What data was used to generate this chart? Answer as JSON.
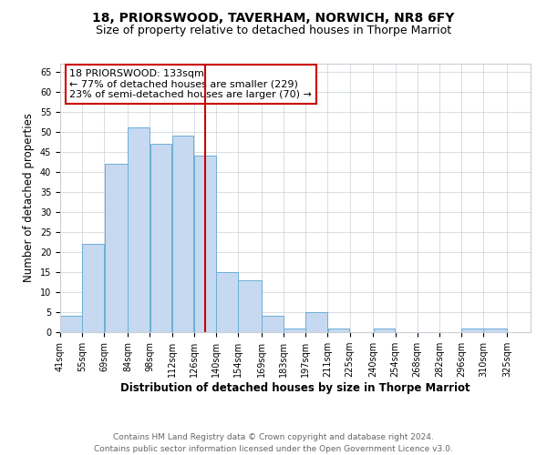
{
  "title": "18, PRIORSWOOD, TAVERHAM, NORWICH, NR8 6FY",
  "subtitle": "Size of property relative to detached houses in Thorpe Marriot",
  "xlabel": "Distribution of detached houses by size in Thorpe Marriot",
  "ylabel": "Number of detached properties",
  "footer_line1": "Contains HM Land Registry data © Crown copyright and database right 2024.",
  "footer_line2": "Contains public sector information licensed under the Open Government Licence v3.0.",
  "annotation_title": "18 PRIORSWOOD: 133sqm",
  "annotation_line2": "← 77% of detached houses are smaller (229)",
  "annotation_line3": "23% of semi-detached houses are larger (70) →",
  "bar_left_edges": [
    41,
    55,
    69,
    84,
    98,
    112,
    126,
    140,
    154,
    169,
    183,
    197,
    211,
    225,
    240,
    254,
    268,
    282,
    296,
    310
  ],
  "bar_widths": [
    14,
    14,
    15,
    14,
    14,
    14,
    14,
    14,
    15,
    14,
    14,
    14,
    14,
    15,
    14,
    14,
    14,
    14,
    14,
    15
  ],
  "bar_heights": [
    4,
    22,
    42,
    51,
    47,
    49,
    44,
    15,
    13,
    4,
    1,
    5,
    1,
    0,
    1,
    0,
    0,
    0,
    1,
    1
  ],
  "x_tick_labels": [
    "41sqm",
    "55sqm",
    "69sqm",
    "84sqm",
    "98sqm",
    "112sqm",
    "126sqm",
    "140sqm",
    "154sqm",
    "169sqm",
    "183sqm",
    "197sqm",
    "211sqm",
    "225sqm",
    "240sqm",
    "254sqm",
    "268sqm",
    "282sqm",
    "296sqm",
    "310sqm",
    "325sqm"
  ],
  "x_tick_positions": [
    41,
    55,
    69,
    84,
    98,
    112,
    126,
    140,
    154,
    169,
    183,
    197,
    211,
    225,
    240,
    254,
    268,
    282,
    296,
    310,
    325
  ],
  "bar_color": "#c6d9f1",
  "bar_edge_color": "#6baed6",
  "vline_x": 133,
  "vline_color": "#cc0000",
  "annotation_box_color": "#cc0000",
  "ylim": [
    0,
    67
  ],
  "xlim": [
    41,
    340
  ],
  "grid_color": "#c8d0d8",
  "background_color": "#ffffff",
  "title_fontsize": 10,
  "subtitle_fontsize": 9,
  "axis_label_fontsize": 8.5,
  "tick_fontsize": 7,
  "annotation_fontsize": 8,
  "footer_fontsize": 6.5,
  "yticks": [
    0,
    5,
    10,
    15,
    20,
    25,
    30,
    35,
    40,
    45,
    50,
    55,
    60,
    65
  ]
}
